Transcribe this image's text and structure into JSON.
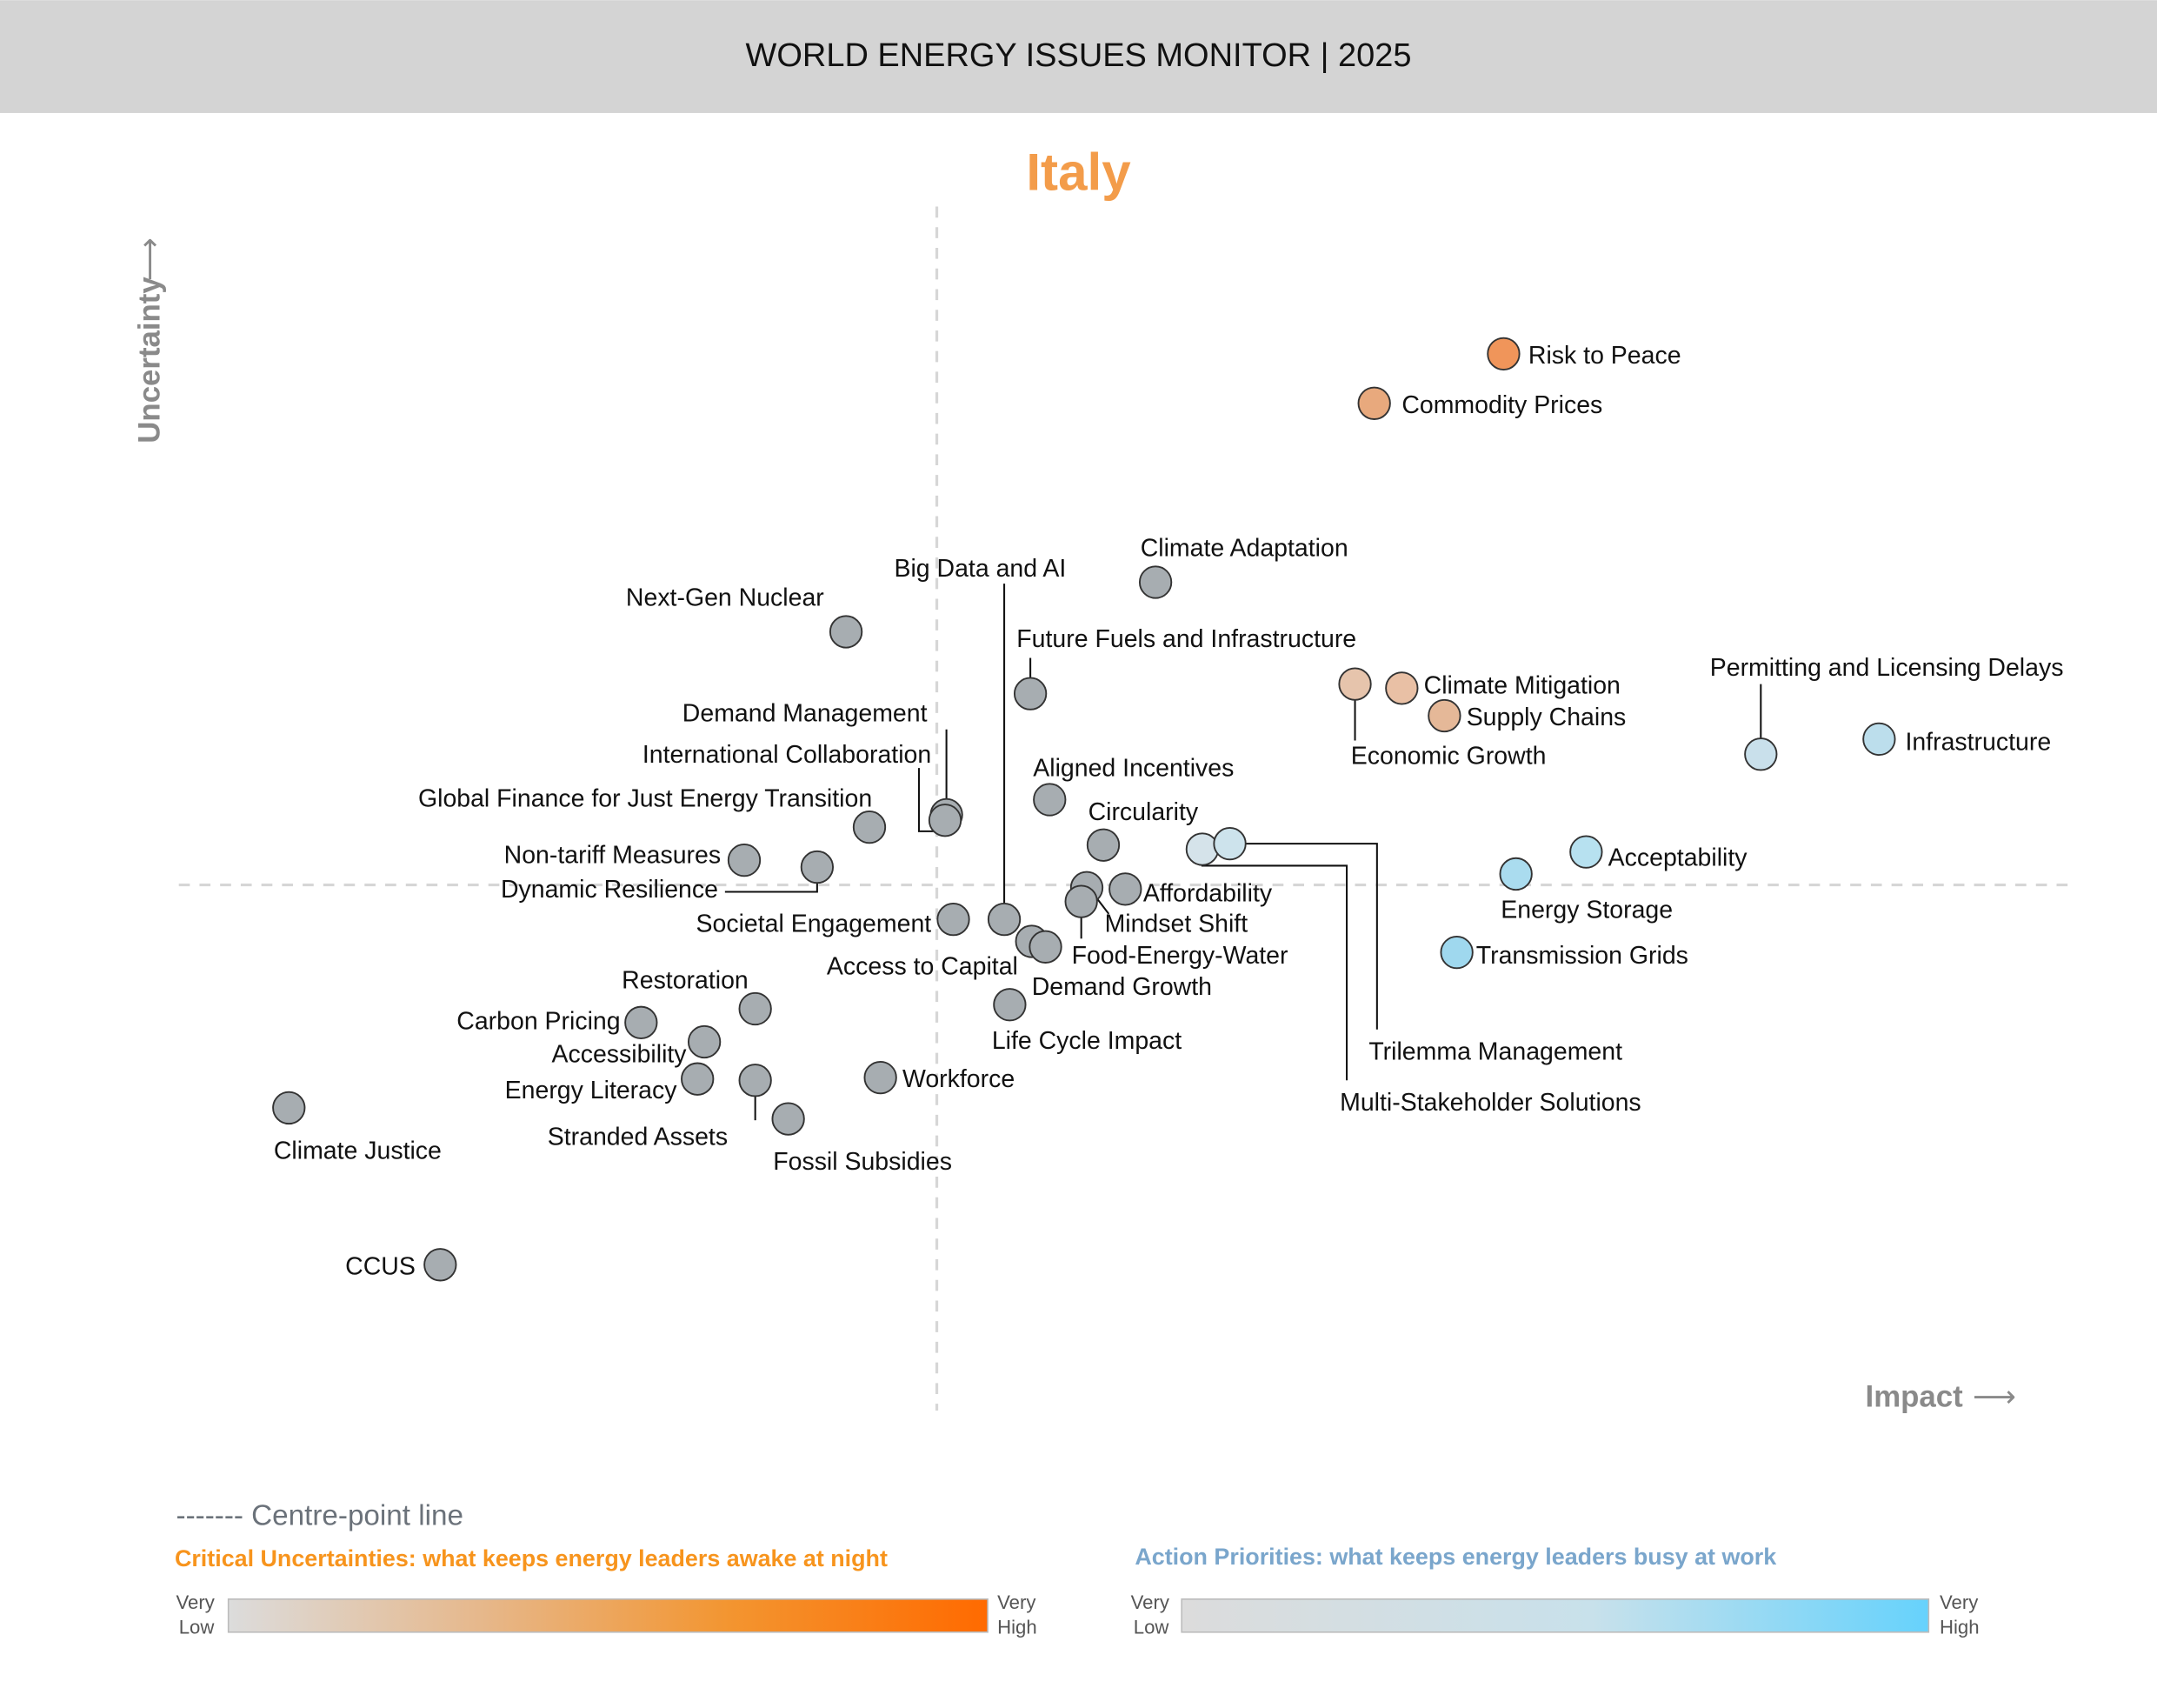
{
  "header": {
    "title": "WORLD ENERGY ISSUES MONITOR | 2025"
  },
  "country": "Italy",
  "colors": {
    "country": "#f39c4a",
    "uncertainty_accent": "#f7941d",
    "priority_accent": "#7aa6cc",
    "neutral_bubble": "#a7adb1",
    "banner": "#d4d4d4"
  },
  "chart_data": {
    "type": "scatter",
    "title": "Italy",
    "xlabel": "Impact",
    "ylabel": "Uncertainty",
    "centre_line": true,
    "points": [
      {
        "label": "Risk to Peace",
        "impact": 41.2,
        "uncertainty": 38.6,
        "color": "#f0955a"
      },
      {
        "label": "Commodity Prices",
        "impact": 31.8,
        "uncertainty": 35.0,
        "color": "#e8a97d"
      },
      {
        "label": "Climate Adaptation",
        "impact": 15.9,
        "uncertainty": 22.0,
        "color": "#a7adb1"
      },
      {
        "label": "Next-Gen Nuclear",
        "impact": -6.6,
        "uncertainty": 18.4,
        "color": "#a7adb1"
      },
      {
        "label": "Big Data and AI",
        "impact": 4.9,
        "uncertainty": -2.5,
        "color": "#a7adb1"
      },
      {
        "label": "Future Fuels and Infrastructure",
        "impact": 6.8,
        "uncertainty": 13.9,
        "color": "#a7adb1"
      },
      {
        "label": "Climate Mitigation",
        "impact": 33.8,
        "uncertainty": 14.3,
        "color": "#e9c0a5"
      },
      {
        "label": "Economic Growth",
        "impact": 30.4,
        "uncertainty": 14.6,
        "color": "#e6c4ac"
      },
      {
        "label": "Supply Chains",
        "impact": 36.9,
        "uncertainty": 12.3,
        "color": "#e5b898"
      },
      {
        "label": "Permitting and Licensing Delays",
        "impact": 59.9,
        "uncertainty": 9.5,
        "color": "#c9e0eb"
      },
      {
        "label": "Infrastructure",
        "impact": 68.5,
        "uncertainty": 10.6,
        "color": "#bcdeec"
      },
      {
        "label": "Demand Management",
        "impact": 0.7,
        "uncertainty": 5.1,
        "color": "#a7adb1"
      },
      {
        "label": "International Collaboration",
        "impact": 0.6,
        "uncertainty": 4.7,
        "color": "#a7adb1"
      },
      {
        "label": "Aligned Incentives",
        "impact": 8.2,
        "uncertainty": 6.2,
        "color": "#a7adb1"
      },
      {
        "label": "Global Finance for Just Energy Transition",
        "impact": -4.9,
        "uncertainty": 4.2,
        "color": "#a7adb1"
      },
      {
        "label": "Circularity",
        "impact": 12.1,
        "uncertainty": 2.9,
        "color": "#a7adb1"
      },
      {
        "label": "Non-tariff Measures",
        "impact": -14.0,
        "uncertainty": 1.8,
        "color": "#a7adb1"
      },
      {
        "label": "Dynamic Resilience",
        "impact": -8.7,
        "uncertainty": 1.3,
        "color": "#a7adb1"
      },
      {
        "label": "Multi-Stakeholder Solutions",
        "impact": 19.3,
        "uncertainty": 2.6,
        "color": "#d5e3ea"
      },
      {
        "label": "Trilemma Management",
        "impact": 21.3,
        "uncertainty": 3.0,
        "color": "#cde3ec"
      },
      {
        "label": "Acceptability",
        "impact": 47.2,
        "uncertainty": 2.4,
        "color": "#b7e1f0"
      },
      {
        "label": "Energy Storage",
        "impact": 42.1,
        "uncertainty": 0.8,
        "color": "#aadcef"
      },
      {
        "label": "Affordability",
        "impact": 13.7,
        "uncertainty": -0.3,
        "color": "#a7adb1"
      },
      {
        "label": "Mindset Shift",
        "impact": 10.9,
        "uncertainty": -0.2,
        "color": "#a7adb1"
      },
      {
        "label": "Food-Energy-Water",
        "impact": 10.5,
        "uncertainty": -1.2,
        "color": "#a7adb1"
      },
      {
        "label": "Societal Engagement",
        "impact": 1.2,
        "uncertainty": -2.5,
        "color": "#a7adb1"
      },
      {
        "label": "Access to Capital",
        "impact": 6.9,
        "uncertainty": -4.1,
        "color": "#a7adb1"
      },
      {
        "label": "Demand Growth",
        "impact": 7.9,
        "uncertainty": -4.5,
        "color": "#a7adb1"
      },
      {
        "label": "Transmission Grids",
        "impact": 37.8,
        "uncertainty": -4.9,
        "color": "#9fd8ee"
      },
      {
        "label": "Life Cycle Impact",
        "impact": 5.3,
        "uncertainty": -8.7,
        "color": "#a7adb1"
      },
      {
        "label": "Restoration",
        "impact": -13.2,
        "uncertainty": -9.0,
        "color": "#a7adb1"
      },
      {
        "label": "Carbon Pricing",
        "impact": -21.5,
        "uncertainty": -10.0,
        "color": "#a7adb1"
      },
      {
        "label": "Accessibility",
        "impact": -16.9,
        "uncertainty": -11.4,
        "color": "#a7adb1"
      },
      {
        "label": "Energy Literacy",
        "impact": -17.4,
        "uncertainty": -14.1,
        "color": "#a7adb1"
      },
      {
        "label": "Stranded Assets",
        "impact": -13.2,
        "uncertainty": -14.2,
        "color": "#a7adb1"
      },
      {
        "label": "Fossil Subsidies",
        "impact": -10.8,
        "uncertainty": -17.0,
        "color": "#a7adb1"
      },
      {
        "label": "Workforce",
        "impact": -4.1,
        "uncertainty": -14.0,
        "color": "#a7adb1"
      },
      {
        "label": "Climate Justice",
        "impact": -47.1,
        "uncertainty": -16.2,
        "color": "#a7adb1"
      },
      {
        "label": "CCUS",
        "impact": -36.1,
        "uncertainty": -27.6,
        "color": "#a7adb1"
      }
    ]
  },
  "legend": {
    "centre_line": "------- Centre-point line",
    "uncertainties_title": "Critical Uncertainties: what keeps energy leaders awake at night",
    "priorities_title": "Action Priorities: what keeps energy leaders busy at work",
    "very": "Very",
    "low": "Low",
    "high": "High",
    "uncertainty_gradient": [
      "#dcdcdc",
      "#e6b88c",
      "#f39530",
      "#ff6a00"
    ],
    "priority_gradient": [
      "#dcdcdc",
      "#c8e1eb",
      "#66d2fc"
    ]
  }
}
